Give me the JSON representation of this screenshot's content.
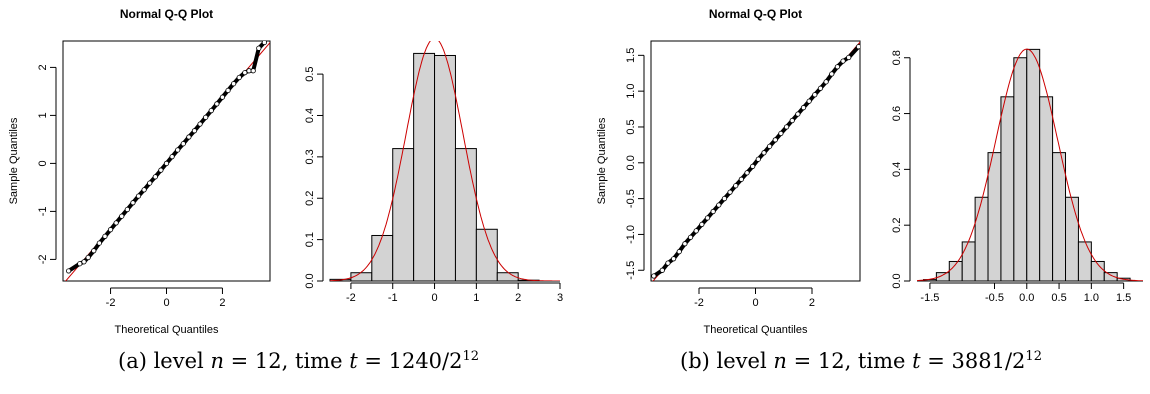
{
  "colors": {
    "frame": "#000000",
    "points": "#000000",
    "fit_line": "#cc0000",
    "bar_fill": "#d3d3d3",
    "bar_stroke": "#000000"
  },
  "captions": [
    {
      "tag": "(a)",
      "text_level": "level",
      "n_var": "n",
      "n_val": "= 12, time",
      "t_var": "t",
      "t_val": "= 1240/2",
      "t_exp": "12"
    },
    {
      "tag": "(b)",
      "text_level": "level",
      "n_var": "n",
      "n_val": "= 12, time",
      "t_var": "t",
      "t_val": "= 3881/2",
      "t_exp": "12"
    }
  ],
  "chart_data": [
    {
      "type": "scatter",
      "title": "Normal Q-Q Plot",
      "xlabel": "Theoretical Quantiles",
      "ylabel": "Sample Quantiles",
      "xlim": [
        -3.7,
        3.7
      ],
      "ylim": [
        -2.45,
        2.55
      ],
      "xticks": [
        -2,
        0,
        2
      ],
      "xtick_labels": [
        "-2",
        "0",
        "2"
      ],
      "yticks": [
        -2,
        -1,
        0,
        1,
        2
      ],
      "ytick_labels": [
        "-2",
        "-1",
        "0",
        "1",
        "2"
      ],
      "reference_line": {
        "slope": 0.68,
        "intercept": 0.0
      },
      "points": [
        [
          -3.5,
          -2.24
        ],
        [
          -3.1,
          -2.09
        ],
        [
          -2.95,
          -2.05
        ],
        [
          -2.8,
          -1.96
        ],
        [
          -2.6,
          -1.82
        ],
        [
          -2.4,
          -1.66
        ],
        [
          -2.2,
          -1.52
        ],
        [
          -2.0,
          -1.38
        ],
        [
          -1.8,
          -1.24
        ],
        [
          -1.6,
          -1.1
        ],
        [
          -1.4,
          -0.96
        ],
        [
          -1.2,
          -0.82
        ],
        [
          -1.0,
          -0.68
        ],
        [
          -0.8,
          -0.55
        ],
        [
          -0.6,
          -0.41
        ],
        [
          -0.4,
          -0.28
        ],
        [
          -0.2,
          -0.14
        ],
        [
          0.0,
          0.0
        ],
        [
          0.2,
          0.14
        ],
        [
          0.4,
          0.28
        ],
        [
          0.6,
          0.41
        ],
        [
          0.8,
          0.55
        ],
        [
          1.0,
          0.68
        ],
        [
          1.2,
          0.82
        ],
        [
          1.4,
          0.96
        ],
        [
          1.6,
          1.1
        ],
        [
          1.8,
          1.24
        ],
        [
          2.0,
          1.38
        ],
        [
          2.2,
          1.52
        ],
        [
          2.4,
          1.66
        ],
        [
          2.6,
          1.79
        ],
        [
          2.8,
          1.89
        ],
        [
          2.95,
          1.93
        ],
        [
          3.1,
          1.93
        ],
        [
          3.3,
          2.4
        ],
        [
          3.5,
          2.52
        ]
      ]
    },
    {
      "type": "bar",
      "title": "",
      "xlabel": "",
      "ylabel": "",
      "xlim": [
        -2.5,
        3.0
      ],
      "ylim": [
        0,
        0.58
      ],
      "xticks": [
        -2,
        -1,
        0,
        1,
        2,
        3
      ],
      "xtick_labels": [
        "-2",
        "-1",
        "0",
        "1",
        "2",
        "3"
      ],
      "yticks": [
        0.0,
        0.1,
        0.2,
        0.3,
        0.4,
        0.5
      ],
      "ytick_labels": [
        "0.0",
        "0.1",
        "0.2",
        "0.3",
        "0.4",
        "0.5"
      ],
      "bin_edges": [
        -2.5,
        -2.0,
        -1.5,
        -1.0,
        -0.5,
        0.0,
        0.5,
        1.0,
        1.5,
        2.0,
        2.5,
        3.0
      ],
      "values": [
        0.004,
        0.02,
        0.11,
        0.32,
        0.55,
        0.545,
        0.32,
        0.125,
        0.02,
        0.002,
        0.0
      ],
      "density_curve": {
        "mean": 0.0,
        "sd": 0.68
      }
    },
    {
      "type": "scatter",
      "title": "Normal Q-Q Plot",
      "xlabel": "Theoretical Quantiles",
      "ylabel": "Sample Quantiles",
      "xlim": [
        -3.7,
        3.7
      ],
      "ylim": [
        -1.65,
        1.7
      ],
      "xticks": [
        -2,
        0,
        2
      ],
      "xtick_labels": [
        "-2",
        "0",
        "2"
      ],
      "yticks": [
        -1.5,
        -1.0,
        -0.5,
        0.0,
        0.5,
        1.0,
        1.5
      ],
      "ytick_labels": [
        "-1.5",
        "-1.0",
        "-0.5",
        "0.0",
        "0.5",
        "1.0",
        "1.5"
      ],
      "reference_line": {
        "slope": 0.455,
        "intercept": 0.0
      },
      "points": [
        [
          -3.6,
          -1.58
        ],
        [
          -3.3,
          -1.5
        ],
        [
          -3.1,
          -1.4
        ],
        [
          -2.9,
          -1.34
        ],
        [
          -2.7,
          -1.24
        ],
        [
          -2.5,
          -1.13
        ],
        [
          -2.3,
          -1.04
        ],
        [
          -2.1,
          -0.95
        ],
        [
          -1.9,
          -0.86
        ],
        [
          -1.7,
          -0.77
        ],
        [
          -1.5,
          -0.68
        ],
        [
          -1.3,
          -0.59
        ],
        [
          -1.1,
          -0.5
        ],
        [
          -0.9,
          -0.41
        ],
        [
          -0.7,
          -0.32
        ],
        [
          -0.5,
          -0.23
        ],
        [
          -0.3,
          -0.14
        ],
        [
          -0.1,
          -0.05
        ],
        [
          0.1,
          0.05
        ],
        [
          0.3,
          0.14
        ],
        [
          0.5,
          0.23
        ],
        [
          0.7,
          0.32
        ],
        [
          0.9,
          0.41
        ],
        [
          1.1,
          0.5
        ],
        [
          1.3,
          0.59
        ],
        [
          1.5,
          0.68
        ],
        [
          1.7,
          0.77
        ],
        [
          1.9,
          0.86
        ],
        [
          2.1,
          0.95
        ],
        [
          2.3,
          1.04
        ],
        [
          2.5,
          1.13
        ],
        [
          2.7,
          1.24
        ],
        [
          2.9,
          1.34
        ],
        [
          3.1,
          1.42
        ],
        [
          3.3,
          1.47
        ],
        [
          3.65,
          1.62
        ]
      ]
    },
    {
      "type": "bar",
      "title": "",
      "xlabel": "",
      "ylabel": "",
      "xlim": [
        -1.7,
        1.8
      ],
      "ylim": [
        0,
        0.86
      ],
      "xticks": [
        -1.5,
        -0.5,
        0.0,
        0.5,
        1.0,
        1.5
      ],
      "xtick_labels": [
        "-1.5",
        "-0.5",
        "0.0",
        "0.5",
        "1.0",
        "1.5"
      ],
      "yticks": [
        0.0,
        0.2,
        0.4,
        0.6,
        0.8
      ],
      "ytick_labels": [
        "0.0",
        "0.2",
        "0.4",
        "0.6",
        "0.8"
      ],
      "bin_edges": [
        -1.6,
        -1.4,
        -1.2,
        -1.0,
        -0.8,
        -0.6,
        -0.4,
        -0.2,
        0.0,
        0.2,
        0.4,
        0.6,
        0.8,
        1.0,
        1.2,
        1.4,
        1.6,
        1.8
      ],
      "values": [
        0.005,
        0.03,
        0.07,
        0.14,
        0.3,
        0.46,
        0.66,
        0.8,
        0.83,
        0.66,
        0.46,
        0.3,
        0.14,
        0.07,
        0.03,
        0.01,
        0.0
      ],
      "density_curve": {
        "mean": 0.0,
        "sd": 0.48
      }
    }
  ]
}
